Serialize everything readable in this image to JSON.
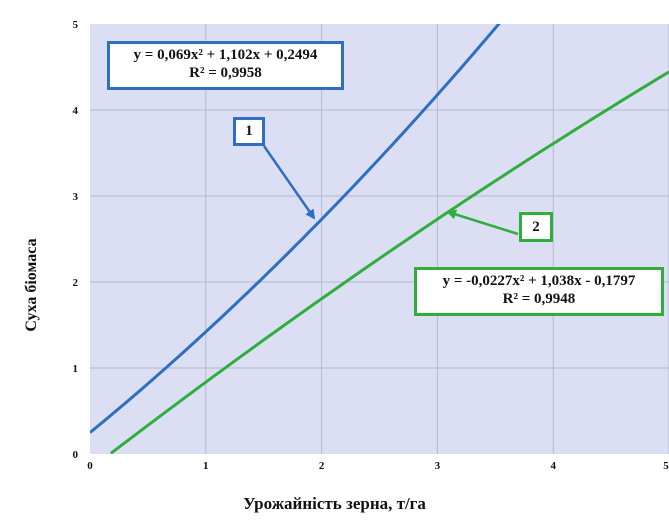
{
  "chart_data": {
    "type": "line",
    "xlabel": "Урожайність зерна, т/га",
    "ylabel": "Суха біомаса",
    "xlim": [
      0,
      5
    ],
    "ylim": [
      0,
      5
    ],
    "x_ticks": [
      "0",
      "1",
      "2",
      "3",
      "4",
      "5"
    ],
    "y_ticks": [
      "0",
      "1",
      "2",
      "3",
      "4",
      "5"
    ],
    "grid": true,
    "background": "#dcdff3",
    "series": [
      {
        "name": "1",
        "color": "#2e6fc2",
        "coefficients": {
          "a": 0.069,
          "b": 1.102,
          "c": 0.2494
        },
        "x_range": [
          0,
          3.55
        ],
        "equation": "y = 0,069x² + 1,102x + 0,2494",
        "r2": "R² = 0,9958",
        "values": [
          {
            "x": 0,
            "y": 0.25
          },
          {
            "x": 0.5,
            "y": 0.82
          },
          {
            "x": 1,
            "y": 1.42
          },
          {
            "x": 1.5,
            "y": 2.05
          },
          {
            "x": 2,
            "y": 2.73
          },
          {
            "x": 2.5,
            "y": 3.44
          },
          {
            "x": 3,
            "y": 4.18
          },
          {
            "x": 3.55,
            "y": 5.0
          }
        ]
      },
      {
        "name": "2",
        "color": "#2fae3e",
        "coefficients": {
          "a": -0.0227,
          "b": 1.038,
          "c": -0.1797
        },
        "x_range": [
          0.18,
          5
        ],
        "equation": "y = -0,0227x² + 1,038x - 0,1797",
        "r2": "R² = 0,9948",
        "values": [
          {
            "x": 0.18,
            "y": 0.01
          },
          {
            "x": 1,
            "y": 0.84
          },
          {
            "x": 2,
            "y": 1.81
          },
          {
            "x": 3,
            "y": 2.73
          },
          {
            "x": 4,
            "y": 3.61
          },
          {
            "x": 5,
            "y": 4.44
          }
        ]
      }
    ]
  }
}
